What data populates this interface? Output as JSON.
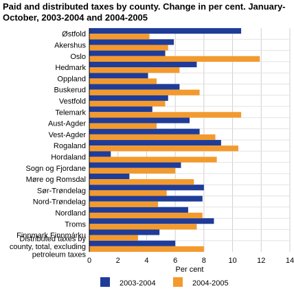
{
  "chart_data": {
    "type": "bar",
    "orientation": "horizontal",
    "title": "Paid and distributed taxes by county. Change in per cent. January-October, 2003-2004 and 2004-2005",
    "xlabel": "Per cent",
    "ylabel": "",
    "xlim": [
      0,
      14
    ],
    "xticks": [
      0,
      2,
      4,
      6,
      8,
      10,
      12,
      14
    ],
    "grid": true,
    "legend": "bottom",
    "categories": [
      "Østfold",
      "Akershus",
      "Oslo",
      "Hedmark",
      "Oppland",
      "Buskerud",
      "Vestfold",
      "Telemark",
      "Aust-Agder",
      "Vest-Agder",
      "Rogaland",
      "Hordaland",
      "Sogn og Fjordane",
      "Møre og Romsdal",
      "Sør-Trøndelag",
      "Nord-Trøndelag",
      "Nordland",
      "Troms",
      "Finnmark Finnmárku",
      [
        "Distributed taxes by",
        "county, total, excluding",
        "petroleum taxes"
      ]
    ],
    "series": [
      {
        "name": "2003-2004",
        "color": "#1f3c99",
        "values": [
          10.6,
          5.9,
          5.3,
          7.5,
          4.1,
          6.3,
          5.5,
          4.4,
          7.0,
          7.7,
          9.2,
          1.5,
          6.4,
          2.8,
          8.0,
          7.9,
          6.9,
          8.7,
          4.9,
          6.0
        ]
      },
      {
        "name": "2004-2005",
        "color": "#f39a2e",
        "values": [
          4.2,
          5.5,
          11.9,
          6.3,
          4.7,
          7.7,
          5.3,
          10.6,
          4.7,
          8.8,
          10.4,
          8.9,
          6.0,
          7.3,
          5.4,
          4.8,
          7.9,
          7.5,
          3.4,
          8.0
        ]
      }
    ]
  }
}
